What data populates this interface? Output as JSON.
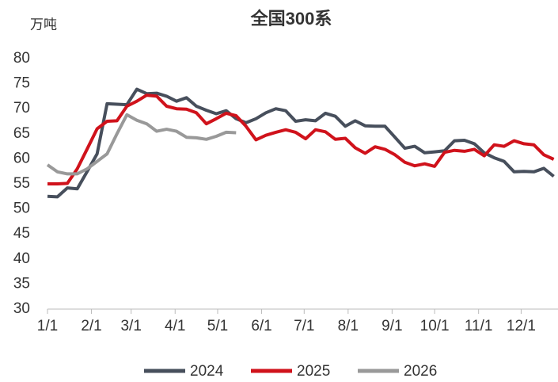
{
  "chart_data": {
    "type": "line",
    "title": "全国300系",
    "y_label": "万吨",
    "x": [
      0,
      7,
      14,
      21,
      28,
      35,
      42,
      49,
      56,
      63,
      70,
      77,
      84,
      91,
      98,
      105,
      112,
      119,
      126,
      133,
      140,
      147,
      154,
      161,
      168,
      175,
      182,
      189,
      196,
      203,
      210,
      217,
      224,
      231,
      238,
      245,
      252,
      259,
      266,
      273,
      280,
      287,
      294,
      301,
      308,
      315,
      322,
      329,
      336,
      343,
      350,
      357
    ],
    "xlim": [
      0,
      360
    ],
    "xticks": [
      {
        "value": 0,
        "label": "1/1"
      },
      {
        "value": 31,
        "label": "2/1"
      },
      {
        "value": 59,
        "label": "3/1"
      },
      {
        "value": 90,
        "label": "4/1"
      },
      {
        "value": 120,
        "label": "5/1"
      },
      {
        "value": 151,
        "label": "6/1"
      },
      {
        "value": 181,
        "label": "7/1"
      },
      {
        "value": 212,
        "label": "8/1"
      },
      {
        "value": 243,
        "label": "9/1"
      },
      {
        "value": 273,
        "label": "10/1"
      },
      {
        "value": 304,
        "label": "11/1"
      },
      {
        "value": 334,
        "label": "12/1"
      }
    ],
    "ylim": [
      30,
      80
    ],
    "yticks": [
      30,
      35,
      40,
      45,
      50,
      55,
      60,
      65,
      70,
      75,
      80
    ],
    "grid": false,
    "legend": "bottom",
    "series": [
      {
        "name": "2024",
        "color": "#474f5c",
        "values": [
          52.5,
          52.4,
          54.2,
          54,
          57.5,
          61,
          71,
          70.9,
          70.8,
          73.9,
          73,
          73.1,
          72.5,
          71.5,
          72.2,
          70.5,
          69.7,
          69,
          69.6,
          68,
          67.2,
          68,
          69.2,
          70,
          69.6,
          67.5,
          67.8,
          67.6,
          69.1,
          68.5,
          66.5,
          67.6,
          66.6,
          66.5,
          66.5,
          64.3,
          62.1,
          62.5,
          61.2,
          61.4,
          61.6,
          63.6,
          63.7,
          63,
          61.2,
          60.2,
          59.5,
          57.4,
          57.5,
          57.4,
          58.1,
          56.5
        ]
      },
      {
        "name": "2025",
        "color": "#d0121b",
        "values": [
          55,
          55,
          55.1,
          58,
          62,
          66,
          67.5,
          67.6,
          70.5,
          71.5,
          72.7,
          72.5,
          70.5,
          70,
          69.9,
          69.2,
          67,
          68,
          69.1,
          68.6,
          66.5,
          63.8,
          64.7,
          65.3,
          65.8,
          65.3,
          64,
          65.8,
          65.4,
          63.9,
          64.1,
          62.2,
          61.1,
          62.4,
          61.9,
          60.8,
          59.3,
          58.6,
          59,
          58.5,
          61.3,
          61.7,
          61.5,
          61.9,
          60.6,
          62.8,
          62.5,
          63.6,
          63,
          62.8,
          60.8,
          59.9
        ]
      },
      {
        "name": "2026",
        "color": "#999999",
        "values": [
          58.8,
          57.4,
          57,
          57,
          58,
          59.5,
          61,
          65,
          68.8,
          67.7,
          67,
          65.5,
          65.9,
          65.5,
          64.3,
          64.2,
          63.9,
          64.5,
          65.3,
          65.2,
          null,
          null,
          null,
          null,
          null,
          null,
          null,
          null,
          null,
          null,
          null,
          null,
          null,
          null,
          null,
          null,
          null,
          null,
          null,
          null,
          null,
          null,
          null,
          null,
          null,
          null,
          null,
          null,
          null,
          null,
          null,
          null
        ]
      }
    ]
  }
}
